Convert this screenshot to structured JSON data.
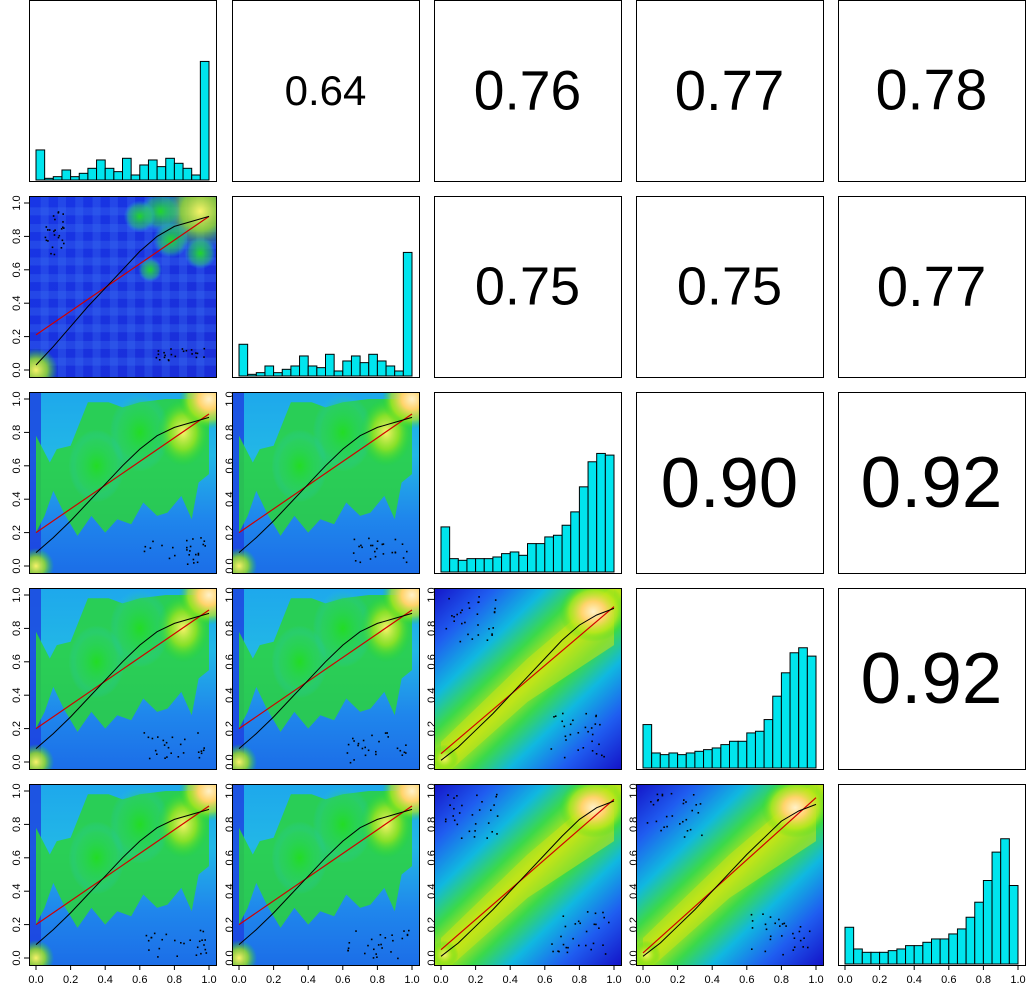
{
  "chart_data": {
    "type": "pairs-matrix",
    "variables": 5,
    "bins": 20,
    "axis_ticks": [
      "0.0",
      "0.2",
      "0.4",
      "0.6",
      "0.8",
      "1.0"
    ],
    "xlim": [
      0,
      1
    ],
    "ylim": [
      0,
      1
    ],
    "colors": {
      "bar_fill": "#00e5ee",
      "fit_line": "#d00000",
      "smooth_line": "#000000",
      "density_low": "#1a1aee",
      "density_mid": "#22dd22",
      "density_high": "#fff1c8"
    },
    "histograms": [
      [
        0.18,
        0.01,
        0.02,
        0.06,
        0.02,
        0.04,
        0.07,
        0.12,
        0.07,
        0.05,
        0.13,
        0.03,
        0.09,
        0.12,
        0.08,
        0.13,
        0.1,
        0.07,
        0.03,
        0.71
      ],
      [
        0.19,
        0.01,
        0.02,
        0.06,
        0.02,
        0.04,
        0.06,
        0.12,
        0.06,
        0.05,
        0.13,
        0.03,
        0.09,
        0.12,
        0.08,
        0.13,
        0.09,
        0.06,
        0.03,
        0.74
      ],
      [
        0.27,
        0.08,
        0.07,
        0.08,
        0.08,
        0.08,
        0.09,
        0.11,
        0.12,
        0.1,
        0.17,
        0.17,
        0.21,
        0.22,
        0.28,
        0.36,
        0.51,
        0.66,
        0.71,
        0.7
      ],
      [
        0.26,
        0.09,
        0.08,
        0.09,
        0.08,
        0.09,
        0.1,
        0.11,
        0.12,
        0.14,
        0.16,
        0.16,
        0.21,
        0.22,
        0.29,
        0.43,
        0.57,
        0.69,
        0.72,
        0.67
      ],
      [
        0.22,
        0.09,
        0.07,
        0.07,
        0.07,
        0.08,
        0.09,
        0.11,
        0.11,
        0.13,
        0.15,
        0.15,
        0.18,
        0.21,
        0.28,
        0.37,
        0.5,
        0.67,
        0.75,
        0.47
      ]
    ],
    "correlations": [
      {
        "row": 0,
        "col": 1,
        "label": "0.64",
        "value": 0.64
      },
      {
        "row": 0,
        "col": 2,
        "label": "0.76",
        "value": 0.76
      },
      {
        "row": 0,
        "col": 3,
        "label": "0.77",
        "value": 0.77
      },
      {
        "row": 0,
        "col": 4,
        "label": "0.78",
        "value": 0.78
      },
      {
        "row": 1,
        "col": 2,
        "label": "0.75",
        "value": 0.75
      },
      {
        "row": 1,
        "col": 3,
        "label": "0.75",
        "value": 0.75
      },
      {
        "row": 1,
        "col": 4,
        "label": "0.77",
        "value": 0.77
      },
      {
        "row": 2,
        "col": 3,
        "label": "0.90",
        "value": 0.9
      },
      {
        "row": 2,
        "col": 4,
        "label": "0.92",
        "value": 0.92
      },
      {
        "row": 3,
        "col": 4,
        "label": "0.92",
        "value": 0.92
      }
    ],
    "scatter_panels": [
      {
        "row": 1,
        "col": 0,
        "kind": "checker",
        "fit": {
          "intercept": 0.21,
          "slope": 0.71
        },
        "smooth": [
          [
            0,
            0.03
          ],
          [
            0.1,
            0.14
          ],
          [
            0.2,
            0.26
          ],
          [
            0.3,
            0.38
          ],
          [
            0.4,
            0.49
          ],
          [
            0.5,
            0.6
          ],
          [
            0.6,
            0.71
          ],
          [
            0.7,
            0.8
          ],
          [
            0.8,
            0.86
          ],
          [
            0.9,
            0.89
          ],
          [
            1.0,
            0.92
          ]
        ]
      },
      {
        "row": 2,
        "col": 0,
        "kind": "band",
        "fit": {
          "intercept": 0.2,
          "slope": 0.71
        },
        "smooth": [
          [
            0,
            0.08
          ],
          [
            0.1,
            0.17
          ],
          [
            0.2,
            0.27
          ],
          [
            0.3,
            0.38
          ],
          [
            0.4,
            0.49
          ],
          [
            0.5,
            0.6
          ],
          [
            0.6,
            0.7
          ],
          [
            0.7,
            0.78
          ],
          [
            0.8,
            0.83
          ],
          [
            0.9,
            0.86
          ],
          [
            1.0,
            0.89
          ]
        ]
      },
      {
        "row": 3,
        "col": 0,
        "kind": "band",
        "fit": {
          "intercept": 0.2,
          "slope": 0.71
        },
        "smooth": [
          [
            0,
            0.08
          ],
          [
            0.1,
            0.17
          ],
          [
            0.2,
            0.27
          ],
          [
            0.3,
            0.38
          ],
          [
            0.4,
            0.49
          ],
          [
            0.5,
            0.6
          ],
          [
            0.6,
            0.7
          ],
          [
            0.7,
            0.78
          ],
          [
            0.8,
            0.83
          ],
          [
            0.9,
            0.86
          ],
          [
            1.0,
            0.89
          ]
        ]
      },
      {
        "row": 4,
        "col": 0,
        "kind": "band",
        "fit": {
          "intercept": 0.2,
          "slope": 0.71
        },
        "smooth": [
          [
            0,
            0.08
          ],
          [
            0.1,
            0.17
          ],
          [
            0.2,
            0.27
          ],
          [
            0.3,
            0.38
          ],
          [
            0.4,
            0.49
          ],
          [
            0.5,
            0.6
          ],
          [
            0.6,
            0.7
          ],
          [
            0.7,
            0.78
          ],
          [
            0.8,
            0.83
          ],
          [
            0.9,
            0.86
          ],
          [
            1.0,
            0.89
          ]
        ]
      },
      {
        "row": 2,
        "col": 1,
        "kind": "band",
        "fit": {
          "intercept": 0.2,
          "slope": 0.71
        },
        "smooth": [
          [
            0,
            0.08
          ],
          [
            0.1,
            0.17
          ],
          [
            0.2,
            0.27
          ],
          [
            0.3,
            0.38
          ],
          [
            0.4,
            0.49
          ],
          [
            0.5,
            0.6
          ],
          [
            0.6,
            0.7
          ],
          [
            0.7,
            0.78
          ],
          [
            0.8,
            0.83
          ],
          [
            0.9,
            0.86
          ],
          [
            1.0,
            0.89
          ]
        ]
      },
      {
        "row": 3,
        "col": 1,
        "kind": "band",
        "fit": {
          "intercept": 0.2,
          "slope": 0.71
        },
        "smooth": [
          [
            0,
            0.08
          ],
          [
            0.1,
            0.17
          ],
          [
            0.2,
            0.27
          ],
          [
            0.3,
            0.38
          ],
          [
            0.4,
            0.49
          ],
          [
            0.5,
            0.6
          ],
          [
            0.6,
            0.7
          ],
          [
            0.7,
            0.78
          ],
          [
            0.8,
            0.83
          ],
          [
            0.9,
            0.86
          ],
          [
            1.0,
            0.89
          ]
        ]
      },
      {
        "row": 4,
        "col": 1,
        "kind": "band",
        "fit": {
          "intercept": 0.2,
          "slope": 0.71
        },
        "smooth": [
          [
            0,
            0.08
          ],
          [
            0.1,
            0.17
          ],
          [
            0.2,
            0.27
          ],
          [
            0.3,
            0.38
          ],
          [
            0.4,
            0.49
          ],
          [
            0.5,
            0.6
          ],
          [
            0.6,
            0.7
          ],
          [
            0.7,
            0.78
          ],
          [
            0.8,
            0.83
          ],
          [
            0.9,
            0.86
          ],
          [
            1.0,
            0.89
          ]
        ]
      },
      {
        "row": 3,
        "col": 2,
        "kind": "diagonal",
        "fit": {
          "intercept": 0.05,
          "slope": 0.88
        },
        "smooth": [
          [
            0,
            0.01
          ],
          [
            0.1,
            0.09
          ],
          [
            0.2,
            0.19
          ],
          [
            0.3,
            0.29
          ],
          [
            0.4,
            0.4
          ],
          [
            0.5,
            0.51
          ],
          [
            0.6,
            0.62
          ],
          [
            0.7,
            0.73
          ],
          [
            0.8,
            0.82
          ],
          [
            0.9,
            0.88
          ],
          [
            1.0,
            0.92
          ]
        ]
      },
      {
        "row": 4,
        "col": 2,
        "kind": "diagonal",
        "fit": {
          "intercept": 0.05,
          "slope": 0.9
        },
        "smooth": [
          [
            0,
            0.01
          ],
          [
            0.1,
            0.09
          ],
          [
            0.2,
            0.19
          ],
          [
            0.3,
            0.29
          ],
          [
            0.4,
            0.4
          ],
          [
            0.5,
            0.51
          ],
          [
            0.6,
            0.62
          ],
          [
            0.7,
            0.73
          ],
          [
            0.8,
            0.83
          ],
          [
            0.9,
            0.9
          ],
          [
            1.0,
            0.94
          ]
        ]
      },
      {
        "row": 4,
        "col": 3,
        "kind": "diagonal",
        "fit": {
          "intercept": 0.03,
          "slope": 0.93
        },
        "smooth": [
          [
            0,
            0.01
          ],
          [
            0.1,
            0.09
          ],
          [
            0.2,
            0.19
          ],
          [
            0.3,
            0.29
          ],
          [
            0.4,
            0.4
          ],
          [
            0.5,
            0.51
          ],
          [
            0.6,
            0.62
          ],
          [
            0.7,
            0.72
          ],
          [
            0.8,
            0.82
          ],
          [
            0.9,
            0.88
          ],
          [
            1.0,
            0.92
          ]
        ]
      }
    ]
  }
}
